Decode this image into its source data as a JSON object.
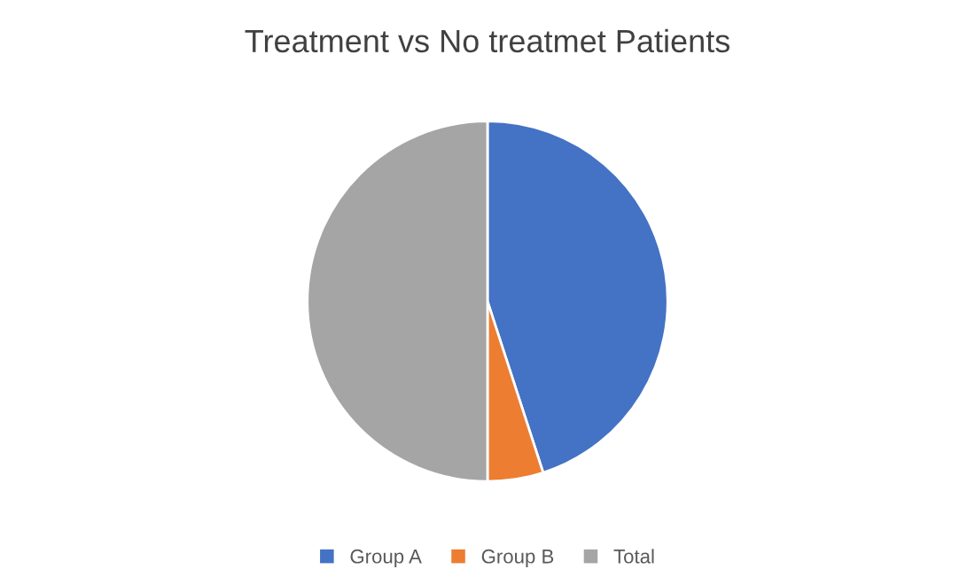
{
  "chart_data": {
    "type": "pie",
    "title": "Treatment vs No treatmet Patients",
    "categories": [
      "Group A",
      "Group B",
      "Total"
    ],
    "values": [
      45,
      5,
      50
    ],
    "colors": [
      "#4472c4",
      "#ed7d31",
      "#a5a5a5"
    ],
    "legend": "bottom"
  }
}
